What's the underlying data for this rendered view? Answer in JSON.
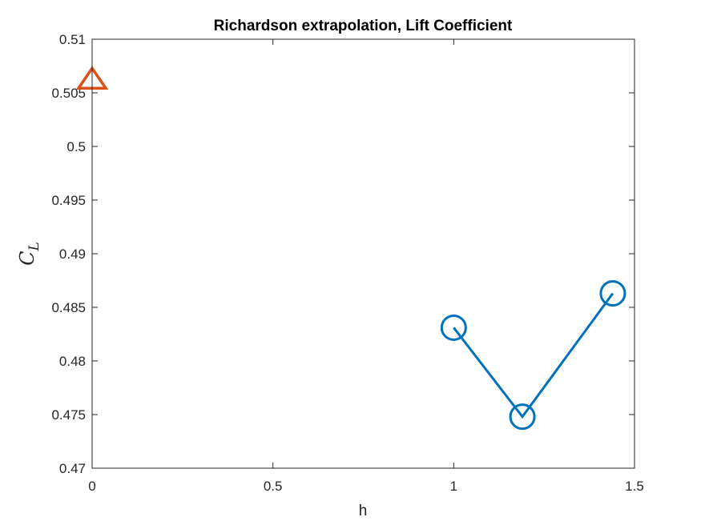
{
  "chart_data": {
    "type": "line",
    "title": "Richardson extrapolation, Lift Coefficient",
    "xlabel": "h",
    "ylabel": {
      "main": "C",
      "sub": "L"
    },
    "xlim": [
      0,
      1.5
    ],
    "ylim": [
      0.47,
      0.51
    ],
    "x_ticks": [
      0,
      0.5,
      1,
      1.5
    ],
    "x_tick_labels": [
      "0",
      "0.5",
      "1",
      "1.5"
    ],
    "y_ticks": [
      0.47,
      0.475,
      0.48,
      0.485,
      0.49,
      0.495,
      0.5,
      0.505,
      0.51
    ],
    "y_tick_labels": [
      "0.47",
      "0.475",
      "0.48",
      "0.485",
      "0.49",
      "0.495",
      "0.5",
      "0.505",
      "0.51"
    ],
    "grid": false,
    "series": [
      {
        "marker": "circle",
        "color": "#0072BD",
        "line": true,
        "x": [
          1,
          1.19,
          1.44
        ],
        "y": [
          0.4831,
          0.4748,
          0.4863
        ]
      },
      {
        "marker": "triangle",
        "color": "#D95319",
        "line": false,
        "x": [
          0
        ],
        "y": [
          0.5061
        ]
      }
    ]
  }
}
